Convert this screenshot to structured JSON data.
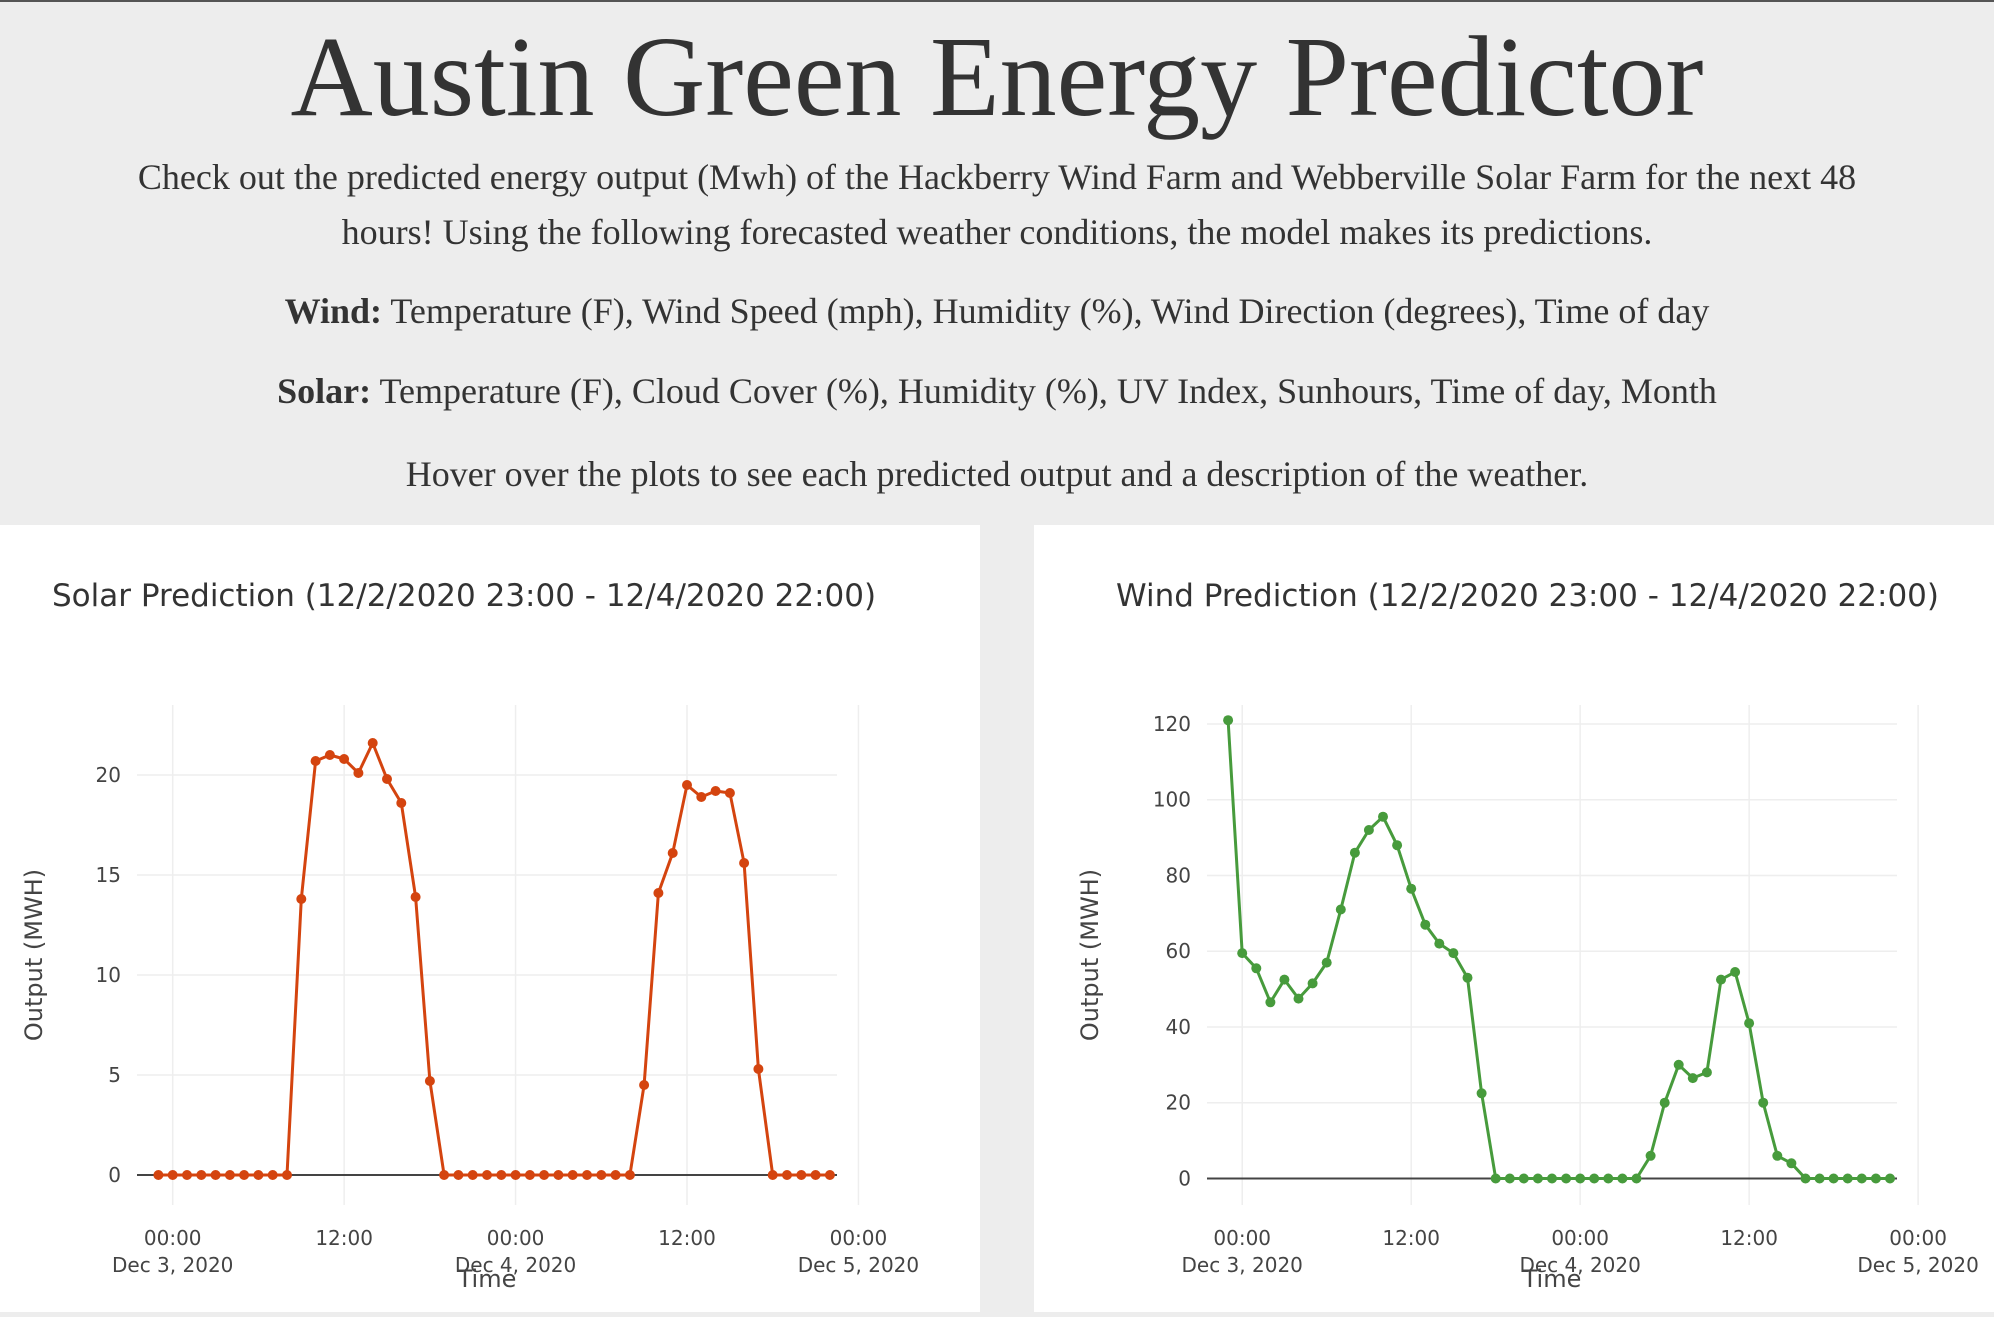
{
  "header": {
    "title": "Austin Green Energy Predictor",
    "description": "Check out the predicted energy output (Mwh) of the Hackberry Wind Farm and Webberville Solar Farm for the next 48 hours! Using the following forecasted weather conditions, the model makes its predictions.",
    "wind_label": "Wind:",
    "wind_features": "Temperature (F), Wind Speed (mph), Humidity (%), Wind Direction (degrees), Time of day",
    "solar_label": "Solar:",
    "solar_features": "Temperature (F), Cloud Cover (%), Humidity (%), UV Index, Sunhours, Time of day, Month",
    "hover_hint": "Hover over the plots to see each predicted output and a description of the weather."
  },
  "chart_data": [
    {
      "type": "line",
      "title": "Solar Prediction (12/2/2020 23:00 - 12/4/2020 22:00)",
      "xlabel": "Time",
      "ylabel": "Output (MWH)",
      "color": "#d4440f",
      "ylim": [
        -1.5,
        23.5
      ],
      "yticks": [
        0,
        5,
        10,
        15,
        20
      ],
      "xlim_hours": [
        -2.5,
        46.5
      ],
      "xticks": [
        {
          "hours": 0,
          "time": "00:00",
          "date": "Dec 3, 2020"
        },
        {
          "hours": 12,
          "time": "12:00",
          "date": ""
        },
        {
          "hours": 24,
          "time": "00:00",
          "date": "Dec 4, 2020"
        },
        {
          "hours": 36,
          "time": "12:00",
          "date": ""
        },
        {
          "hours": 48,
          "time": "00:00",
          "date": "Dec 5, 2020"
        }
      ],
      "grid": true,
      "series": [
        {
          "start": "2020-12-02 23:00",
          "step_hours": 1,
          "values": [
            0,
            0,
            0,
            0,
            0,
            0,
            0,
            0,
            0,
            0,
            13.8,
            20.7,
            21.0,
            20.8,
            20.1,
            21.6,
            19.8,
            18.6,
            13.9,
            4.7,
            0,
            0,
            0,
            0,
            0,
            0,
            0,
            0,
            0,
            0,
            0,
            0,
            0,
            0,
            4.5,
            14.1,
            16.1,
            19.5,
            18.9,
            19.2,
            19.1,
            15.6,
            5.3,
            0,
            0,
            0,
            0,
            0
          ]
        }
      ]
    },
    {
      "type": "line",
      "title": "Wind Prediction (12/2/2020 23:00 - 12/4/2020 22:00)",
      "xlabel": "Time",
      "ylabel": "Output (MWH)",
      "color": "#479b3c",
      "ylim": [
        -7,
        125
      ],
      "yticks": [
        0,
        20,
        40,
        60,
        80,
        100,
        120
      ],
      "xlim_hours": [
        -2.5,
        46.5
      ],
      "xticks": [
        {
          "hours": 0,
          "time": "00:00",
          "date": "Dec 3, 2020"
        },
        {
          "hours": 12,
          "time": "12:00",
          "date": ""
        },
        {
          "hours": 24,
          "time": "00:00",
          "date": "Dec 4, 2020"
        },
        {
          "hours": 36,
          "time": "12:00",
          "date": ""
        },
        {
          "hours": 48,
          "time": "00:00",
          "date": "Dec 5, 2020"
        }
      ],
      "grid": true,
      "series": [
        {
          "start": "2020-12-02 23:00",
          "step_hours": 1,
          "values": [
            121,
            59.5,
            55.5,
            46.5,
            52.5,
            47.5,
            51.5,
            57,
            71,
            86,
            92,
            95.5,
            88,
            76.5,
            67,
            62,
            59.5,
            53,
            22.5,
            0,
            0,
            0,
            0,
            0,
            0,
            0,
            0,
            0,
            0,
            0,
            6,
            20,
            30,
            26.5,
            28,
            52.5,
            54.5,
            41,
            20,
            6,
            4,
            0,
            0,
            0,
            0,
            0,
            0,
            0
          ]
        }
      ]
    }
  ]
}
